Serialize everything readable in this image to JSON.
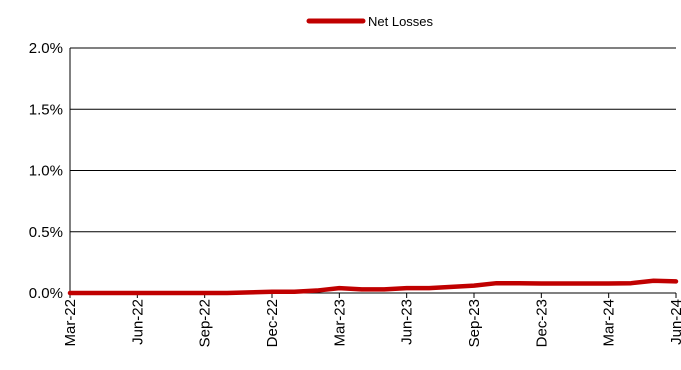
{
  "chart_data": {
    "type": "line",
    "title": "",
    "xlabel": "",
    "ylabel": "",
    "legend": {
      "position": "top-center",
      "entries": [
        "Net Losses"
      ]
    },
    "grid": {
      "horizontal": true,
      "vertical": false
    },
    "y_format": "percent_1dp",
    "ylim": [
      0,
      0.02
    ],
    "yticks": [
      0,
      0.005,
      0.01,
      0.015,
      0.02
    ],
    "ytick_labels": [
      "0.0%",
      "0.5%",
      "1.0%",
      "1.5%",
      "2.0%"
    ],
    "x": [
      "Mar-22",
      "Apr-22",
      "May-22",
      "Jun-22",
      "Jul-22",
      "Aug-22",
      "Sep-22",
      "Oct-22",
      "Nov-22",
      "Dec-22",
      "Jan-23",
      "Feb-23",
      "Mar-23",
      "Apr-23",
      "May-23",
      "Jun-23",
      "Jul-23",
      "Aug-23",
      "Sep-23",
      "Oct-23",
      "Nov-23",
      "Dec-23",
      "Jan-24",
      "Feb-24",
      "Mar-24",
      "Apr-24",
      "May-24",
      "Jun-24"
    ],
    "xtick_labels": [
      "Mar-22",
      "Jun-22",
      "Sep-22",
      "Dec-22",
      "Mar-23",
      "Jun-23",
      "Sep-23",
      "Dec-23",
      "Mar-24",
      "Jun-24"
    ],
    "series": [
      {
        "name": "Net Losses",
        "color": "#C00000",
        "values": [
          0.0,
          0.0,
          0.0,
          0.0,
          0.0,
          0.0,
          0.0,
          0.0,
          5e-05,
          0.0001,
          0.0001,
          0.0002,
          0.0004,
          0.0003,
          0.0003,
          0.0004,
          0.0004,
          0.0005,
          0.0006,
          0.0008,
          0.0008,
          0.00078,
          0.00078,
          0.00078,
          0.00078,
          0.0008,
          0.001,
          0.00095
        ]
      }
    ]
  }
}
